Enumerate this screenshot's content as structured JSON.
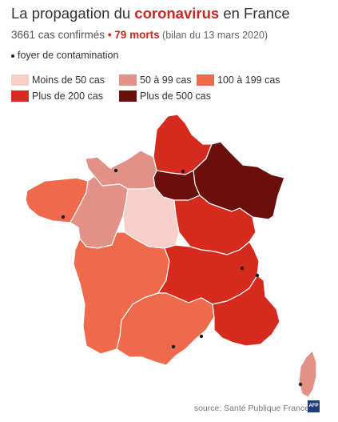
{
  "header": {
    "title_prefix": "La propagation du ",
    "title_highlight": "coronavirus",
    "title_suffix": " en France",
    "cases_text": "3661 cas confirmés",
    "separator": " • ",
    "deaths_text": "79 morts",
    "bulletin_note": " (bilan du 13 mars 2020)"
  },
  "legend": {
    "foyer_label": "foyer de contamination",
    "items": [
      {
        "label": "Moins de 50 cas",
        "color": "#f5cfc8"
      },
      {
        "label": "50 à 99 cas",
        "color": "#e39086"
      },
      {
        "label": "100 à 199 cas",
        "color": "#ef6a4b"
      },
      {
        "label": "Plus de 200 cas",
        "color": "#d62a1e"
      },
      {
        "label": "Plus de 500 cas",
        "color": "#6b0f0d"
      }
    ]
  },
  "regions": [
    {
      "name": "Hauts-de-France",
      "category": "Plus de 200 cas",
      "color": "#d62a1e"
    },
    {
      "name": "Grand Est",
      "category": "Plus de 500 cas",
      "color": "#6b0f0d"
    },
    {
      "name": "Île-de-France",
      "category": "Plus de 500 cas",
      "color": "#6b0f0d"
    },
    {
      "name": "Normandie",
      "category": "50 à 99 cas",
      "color": "#e39086"
    },
    {
      "name": "Bretagne",
      "category": "100 à 199 cas",
      "color": "#ef6a4b"
    },
    {
      "name": "Pays de la Loire",
      "category": "50 à 99 cas",
      "color": "#e39086"
    },
    {
      "name": "Centre-Val de Loire",
      "category": "Moins de 50 cas",
      "color": "#f5cfc8"
    },
    {
      "name": "Bourgogne-Franche-Comté",
      "category": "Plus de 200 cas",
      "color": "#d62a1e"
    },
    {
      "name": "Nouvelle-Aquitaine",
      "category": "100 à 199 cas",
      "color": "#ef6a4b"
    },
    {
      "name": "Auvergne-Rhône-Alpes",
      "category": "Plus de 200 cas",
      "color": "#d62a1e"
    },
    {
      "name": "Occitanie",
      "category": "100 à 199 cas",
      "color": "#ef6a4b"
    },
    {
      "name": "Provence-Alpes-Côte d'Azur",
      "category": "Plus de 200 cas",
      "color": "#d62a1e"
    },
    {
      "name": "Corse",
      "category": "50 à 99 cas",
      "color": "#e39086"
    }
  ],
  "source": "source: Santé Publique France",
  "logo_text": "AFP"
}
